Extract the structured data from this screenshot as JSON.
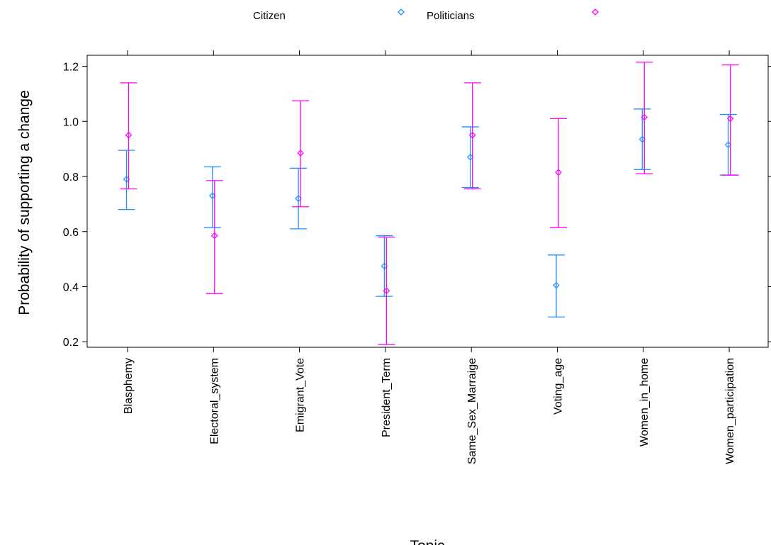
{
  "chart_data": {
    "type": "scatter",
    "title": "",
    "xlabel": "Topic",
    "ylabel": "Probability of supporting a change",
    "ylim": [
      0.18,
      1.24
    ],
    "yticks": [
      0.2,
      0.4,
      0.6,
      0.8,
      1.0,
      1.2
    ],
    "ytick_labels": [
      "0.2",
      "0.4",
      "0.6",
      "0.8",
      "1.0",
      "1.2"
    ],
    "categories": [
      "Blasphemy",
      "Electoral_system",
      "Emigrant_Vote",
      "President_Term",
      "Same_Sex_Marraige",
      "Voting_age",
      "Women_in_home",
      "Women_participation"
    ],
    "legend_position": "top",
    "grid": false,
    "series": [
      {
        "name": "Citizen",
        "color": "#1e90ff",
        "marker": "diamond",
        "values": [
          0.79,
          0.73,
          0.72,
          0.475,
          0.87,
          0.405,
          0.935,
          0.915
        ],
        "lower": [
          0.68,
          0.615,
          0.61,
          0.365,
          0.76,
          0.29,
          0.825,
          0.805
        ],
        "upper": [
          0.895,
          0.835,
          0.83,
          0.585,
          0.98,
          0.515,
          1.045,
          1.025
        ]
      },
      {
        "name": "Politicians",
        "color": "#ff00ff",
        "marker": "diamond",
        "values": [
          0.95,
          0.585,
          0.885,
          0.385,
          0.95,
          0.815,
          1.015,
          1.01
        ],
        "lower": [
          0.755,
          0.375,
          0.69,
          0.19,
          0.755,
          0.615,
          0.81,
          0.805
        ],
        "upper": [
          1.14,
          0.785,
          1.075,
          0.58,
          1.14,
          1.01,
          1.215,
          1.205
        ]
      }
    ]
  }
}
